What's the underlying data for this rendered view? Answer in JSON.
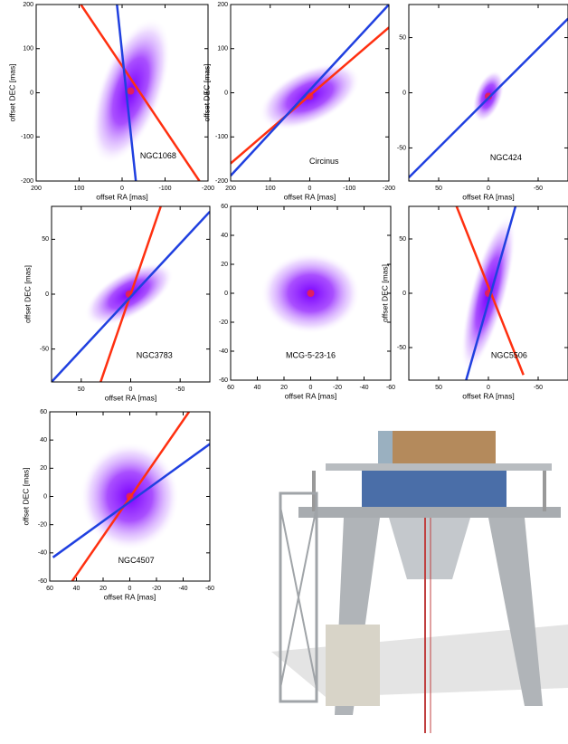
{
  "chart_data": [
    {
      "type": "image",
      "label": "NGC1068",
      "xlabel": "offset RA [mas]",
      "ylabel": "offset DEC [mas]",
      "xlim": [
        200,
        -200
      ],
      "ylim": [
        -200,
        200
      ],
      "xticks": [
        200,
        100,
        0,
        -100,
        -200
      ],
      "yticks": [
        -200,
        -100,
        0,
        100,
        200
      ]
    },
    {
      "type": "image",
      "label": "Circinus",
      "xlabel": "offset RA [mas]",
      "ylabel": "offset DEC [mas]",
      "xlim": [
        200,
        -200
      ],
      "ylim": [
        -200,
        200
      ],
      "xticks": [
        200,
        100,
        0,
        -100,
        -200
      ],
      "yticks": [
        -200,
        -100,
        0,
        100,
        200
      ]
    },
    {
      "type": "image",
      "label": "NGC424",
      "xlabel": "offset RA [mas]",
      "xlim": [
        80,
        -80
      ],
      "ylim": [
        -80,
        80
      ],
      "xticks": [
        50,
        0,
        -50
      ],
      "yticks": [
        -50,
        0,
        50
      ]
    },
    {
      "type": "image",
      "label": "NGC3783",
      "xlabel": "offset RA [mas]",
      "ylabel": "offset DEC [mas]",
      "xlim": [
        80,
        -80
      ],
      "ylim": [
        -80,
        80
      ],
      "xticks": [
        50,
        0,
        -50
      ],
      "yticks": [
        -50,
        0,
        50
      ]
    },
    {
      "type": "image",
      "label": "MCG-5-23-16",
      "xlabel": "offset RA [mas]",
      "xlim": [
        60,
        -60
      ],
      "ylim": [
        -60,
        60
      ],
      "xticks": [
        60,
        40,
        20,
        0,
        -20,
        -40,
        -60
      ],
      "yticks": [
        -60,
        -40,
        -20,
        0,
        20,
        40,
        60
      ]
    },
    {
      "type": "image",
      "label": "NGC5506",
      "xlabel": "offset RA [mas]",
      "ylabel": "offset DEC [mas]",
      "xlim": [
        80,
        -80
      ],
      "ylim": [
        -80,
        80
      ],
      "xticks": [
        50,
        0,
        -50
      ],
      "yticks": [
        -50,
        0,
        50
      ]
    },
    {
      "type": "image",
      "label": "NGC4507",
      "xlabel": "offset RA [mas]",
      "ylabel": "offset DEC [mas]",
      "xlim": [
        60,
        -60
      ],
      "ylim": [
        -60,
        60
      ],
      "xticks": [
        60,
        40,
        20,
        0,
        -20,
        -40,
        -60
      ],
      "yticks": [
        -60,
        -40,
        -20,
        0,
        20,
        40,
        60
      ]
    }
  ]
}
